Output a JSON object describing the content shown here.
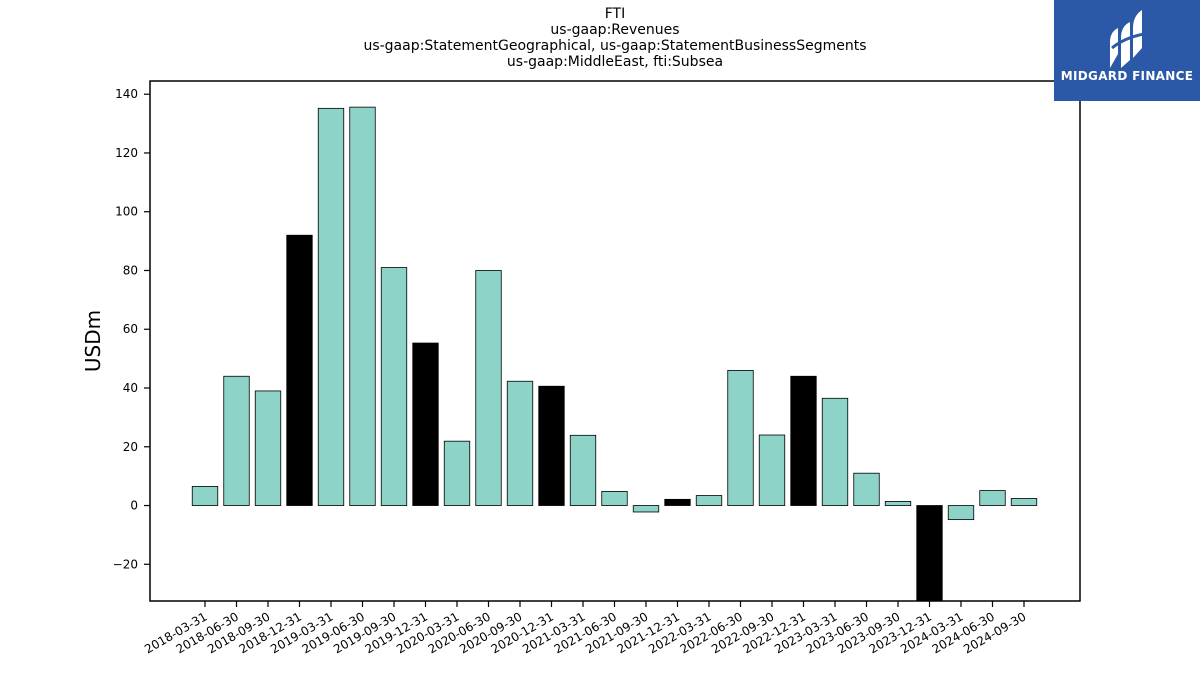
{
  "title_lines": [
    "FTI",
    "us-gaap:Revenues",
    "us-gaap:StatementGeographical, us-gaap:StatementBusinessSegments",
    "us-gaap:MiddleEast, fti:Subsea"
  ],
  "logo": {
    "text": "MIDGARD FINANCE",
    "bg_color": "#2b59a8"
  },
  "colors": {
    "bar_default": "#8dd3c7",
    "bar_q4": "#000000",
    "outline": "#000000"
  },
  "chart_data": {
    "type": "bar",
    "title": "FTI",
    "xlabel": "",
    "ylabel": "USDm",
    "ylim": [
      -32.5,
      144.5
    ],
    "yticks": [
      -20,
      0,
      20,
      40,
      60,
      80,
      100,
      120,
      140
    ],
    "grid": false,
    "categories": [
      "2018-03-31",
      "2018-06-30",
      "2018-09-30",
      "2018-12-31",
      "2019-03-31",
      "2019-06-30",
      "2019-09-30",
      "2019-12-31",
      "2020-03-31",
      "2020-06-30",
      "2020-09-30",
      "2020-12-31",
      "2021-03-31",
      "2021-06-30",
      "2021-09-30",
      "2021-12-31",
      "2022-03-31",
      "2022-06-30",
      "2022-09-30",
      "2022-12-31",
      "2023-03-31",
      "2023-06-30",
      "2023-09-30",
      "2023-12-31",
      "2024-03-31",
      "2024-06-30",
      "2024-09-30"
    ],
    "values": [
      6.5,
      44,
      39,
      92,
      135.2,
      135.6,
      81,
      55.3,
      21.9,
      80,
      42.3,
      40.6,
      23.9,
      4.8,
      -2.2,
      2.1,
      3.4,
      46,
      24,
      44,
      36.5,
      11,
      1.4,
      -33,
      -4.8,
      5.1,
      2.4
    ],
    "bar_colors": [
      "#8dd3c7",
      "#8dd3c7",
      "#8dd3c7",
      "#000000",
      "#8dd3c7",
      "#8dd3c7",
      "#8dd3c7",
      "#000000",
      "#8dd3c7",
      "#8dd3c7",
      "#8dd3c7",
      "#000000",
      "#8dd3c7",
      "#8dd3c7",
      "#8dd3c7",
      "#000000",
      "#8dd3c7",
      "#8dd3c7",
      "#8dd3c7",
      "#000000",
      "#8dd3c7",
      "#8dd3c7",
      "#8dd3c7",
      "#000000",
      "#8dd3c7",
      "#8dd3c7",
      "#8dd3c7"
    ]
  }
}
